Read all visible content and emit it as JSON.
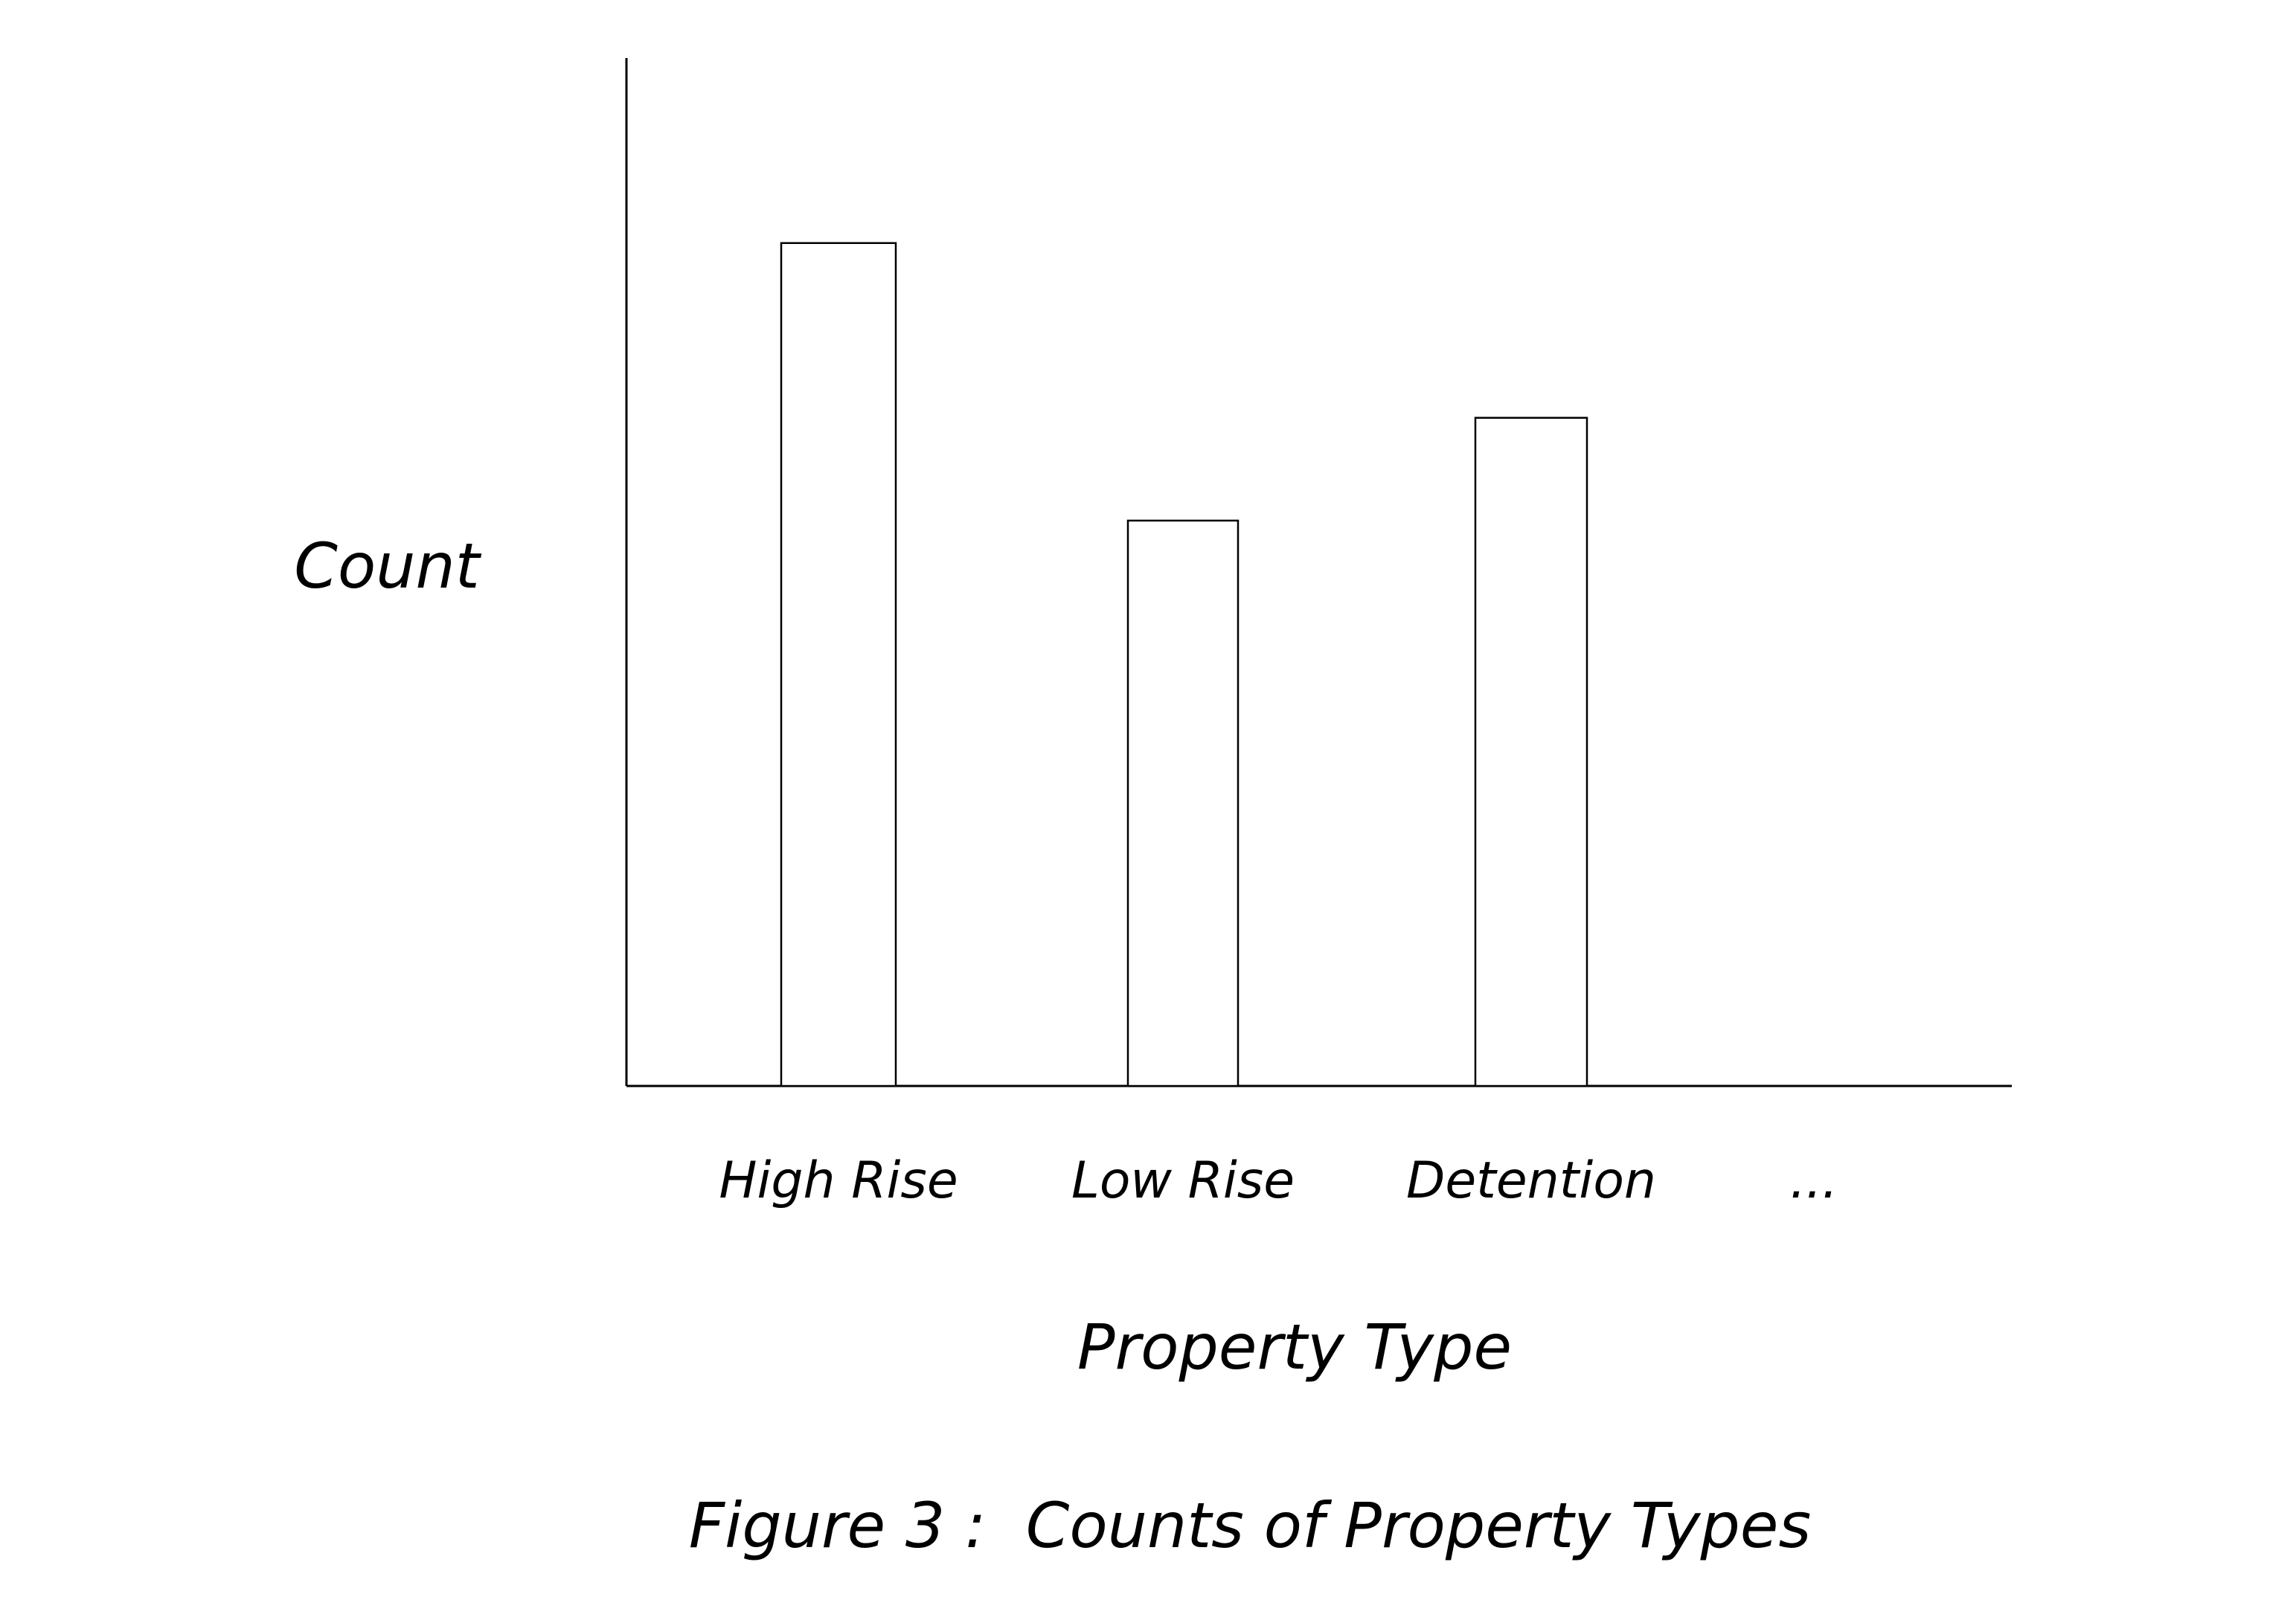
{
  "chart_data": {
    "type": "bar",
    "title": "",
    "caption": "Figure 3 :  Counts of Property Types",
    "xlabel": "Property Type",
    "ylabel": "Count",
    "categories": [
      "High Rise",
      "Low Rise",
      "Detention",
      "..."
    ],
    "values": [
      8.2,
      5.5,
      6.5,
      null
    ],
    "ylim": [
      0,
      10
    ],
    "grid": false,
    "legend": "none",
    "colors": {
      "bar_fill": "#ffffff",
      "bar_stroke": "#000000",
      "axis": "#000000"
    }
  }
}
